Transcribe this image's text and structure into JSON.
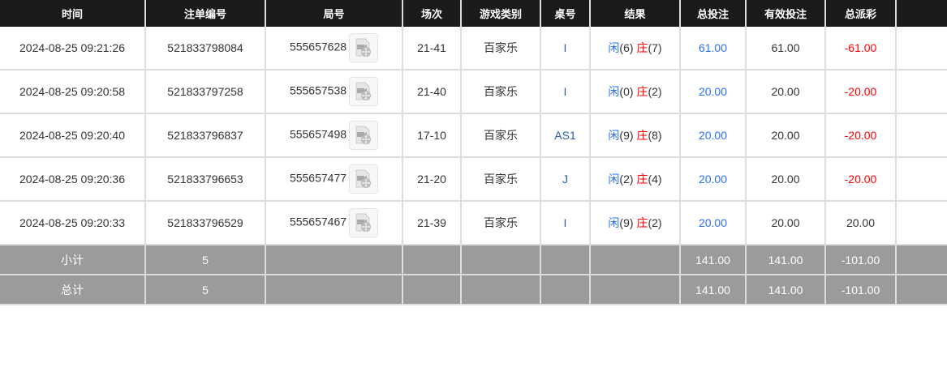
{
  "headers": [
    "时间",
    "注单编号",
    "局号",
    "场次",
    "游戏类别",
    "桌号",
    "结果",
    "总投注",
    "有效投注",
    "总派彩",
    ""
  ],
  "rows": [
    {
      "time": "2024-08-25 09:21:26",
      "bet_id": "521833798084",
      "round": "555657628",
      "shoe": "21-41",
      "game": "百家乐",
      "table": "I",
      "player_label": "闲",
      "player": "(6)",
      "banker_label": "庄",
      "banker": "(7)",
      "total": "61.00",
      "valid": "61.00",
      "payout": "-61.00",
      "payout_neg": true
    },
    {
      "time": "2024-08-25 09:20:58",
      "bet_id": "521833797258",
      "round": "555657538",
      "shoe": "21-40",
      "game": "百家乐",
      "table": "I",
      "player_label": "闲",
      "player": "(0)",
      "banker_label": "庄",
      "banker": "(2)",
      "total": "20.00",
      "valid": "20.00",
      "payout": "-20.00",
      "payout_neg": true
    },
    {
      "time": "2024-08-25 09:20:40",
      "bet_id": "521833796837",
      "round": "555657498",
      "shoe": "17-10",
      "game": "百家乐",
      "table": "AS1",
      "player_label": "闲",
      "player": "(9)",
      "banker_label": "庄",
      "banker": "(8)",
      "total": "20.00",
      "valid": "20.00",
      "payout": "-20.00",
      "payout_neg": true
    },
    {
      "time": "2024-08-25 09:20:36",
      "bet_id": "521833796653",
      "round": "555657477",
      "shoe": "21-20",
      "game": "百家乐",
      "table": "J",
      "player_label": "闲",
      "player": "(2)",
      "banker_label": "庄",
      "banker": "(4)",
      "total": "20.00",
      "valid": "20.00",
      "payout": "-20.00",
      "payout_neg": true
    },
    {
      "time": "2024-08-25 09:20:33",
      "bet_id": "521833796529",
      "round": "555657467",
      "shoe": "21-39",
      "game": "百家乐",
      "table": "I",
      "player_label": "闲",
      "player": "(9)",
      "banker_label": "庄",
      "banker": "(2)",
      "total": "20.00",
      "valid": "20.00",
      "payout": "20.00",
      "payout_neg": false
    }
  ],
  "summary": [
    {
      "label": "小计",
      "count": "5",
      "total": "141.00",
      "valid": "141.00",
      "payout": "-101.00"
    },
    {
      "label": "总计",
      "count": "5",
      "total": "141.00",
      "valid": "141.00",
      "payout": "-101.00"
    }
  ],
  "colors": {
    "blue": "#2a6ef5",
    "red": "#ff0000",
    "header_bg": "#1b1b1b",
    "summary_bg": "#9b9b9b"
  }
}
